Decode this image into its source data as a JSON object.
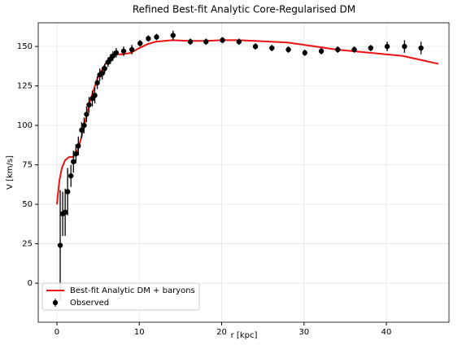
{
  "chart_data": {
    "type": "line",
    "title": "Refined Best-fit Analytic Core-Regularised DM",
    "x_label": "r [kpc]",
    "y_label": "V [km/s]",
    "xlim": [
      -2.27,
      47.6
    ],
    "ylim": [
      -24.7,
      165
    ],
    "xticks": [
      0,
      10,
      20,
      30,
      40
    ],
    "yticks": [
      0,
      25,
      50,
      75,
      100,
      125,
      150
    ],
    "grid": true,
    "legend": "lower left",
    "series": [
      {
        "name": "Best-fit Analytic DM + baryons",
        "type": "line",
        "color": "#ee1111",
        "x": [
          0,
          0.3,
          0.6,
          1,
          1.5,
          2,
          2.5,
          3,
          4,
          5,
          6,
          7,
          8,
          9,
          10,
          11,
          12,
          14,
          16,
          18,
          20,
          22,
          24,
          26,
          28,
          30,
          34,
          38,
          42,
          46.3
        ],
        "values": [
          50,
          65,
          73,
          78,
          80,
          80,
          84,
          93,
          115,
          131,
          140,
          145,
          145,
          146,
          149,
          151.5,
          153,
          154,
          153.5,
          153.5,
          154,
          154,
          153.5,
          153,
          152.5,
          151,
          148,
          146,
          144,
          139
        ]
      },
      {
        "name": "Observed",
        "type": "errorbar",
        "color": "#000000",
        "x": [
          0.4,
          0.7,
          1.0,
          1.3,
          1.7,
          2.0,
          2.3,
          2.6,
          3.0,
          3.3,
          3.6,
          3.9,
          4.3,
          4.6,
          4.9,
          5.2,
          5.5,
          5.8,
          6.2,
          6.5,
          6.8,
          7.2,
          8.1,
          9.1,
          10.1,
          11.1,
          12.1,
          14.1,
          16.2,
          18.1,
          20.1,
          22.1,
          24.1,
          26.1,
          28.1,
          30.1,
          32.1,
          34.1,
          36.1,
          38.1,
          40.1,
          42.2,
          44.2
        ],
        "values": [
          24,
          44,
          45,
          58,
          68,
          77,
          82,
          87,
          97,
          100,
          107,
          113,
          117,
          119,
          127,
          132,
          133,
          136,
          140,
          142,
          144,
          146,
          147,
          148,
          152,
          155,
          156,
          157,
          153,
          153,
          154,
          153,
          150,
          149,
          148,
          146,
          147,
          148,
          148,
          149,
          150,
          150,
          149
        ],
        "errors": [
          35,
          14,
          15,
          15,
          7,
          7,
          6,
          6,
          5,
          5,
          5,
          5,
          5,
          5,
          4,
          4,
          4,
          3,
          3,
          3,
          3,
          3,
          3,
          3,
          2,
          2,
          2,
          3,
          2,
          2,
          2,
          2,
          2,
          2,
          2,
          2,
          2,
          2,
          2,
          2,
          3,
          4,
          4
        ]
      }
    ]
  }
}
